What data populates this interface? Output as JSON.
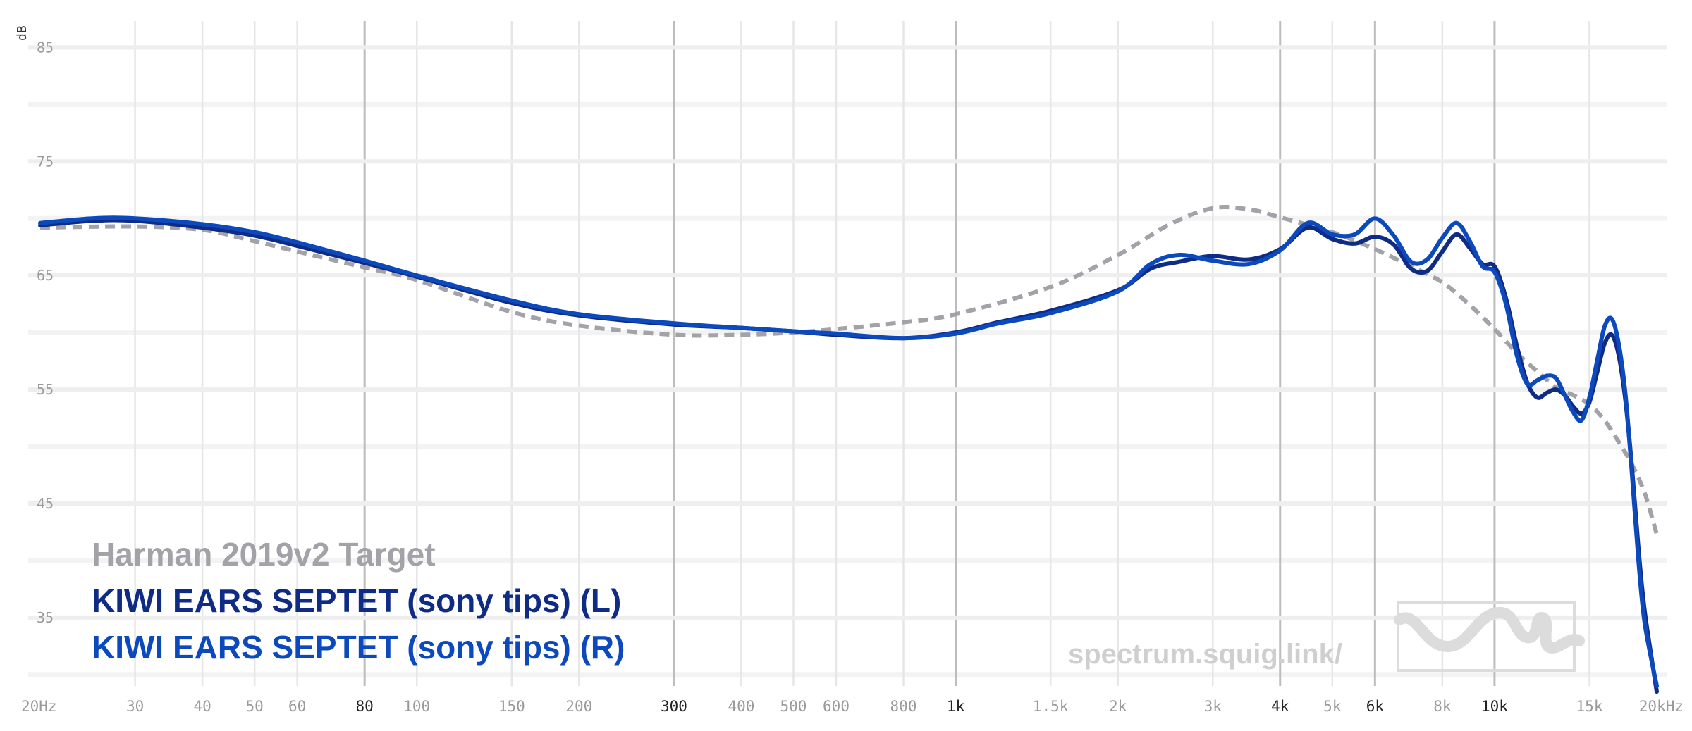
{
  "chart_data": {
    "type": "line",
    "xscale": "log",
    "xlim": [
      20,
      20000
    ],
    "ylim": [
      29,
      87
    ],
    "ylabel": "dB",
    "y_ticks": [
      {
        "value": 85,
        "label": "85"
      },
      {
        "value": 75,
        "label": "75"
      },
      {
        "value": 65,
        "label": "65"
      },
      {
        "value": 55,
        "label": "55"
      },
      {
        "value": 45,
        "label": "45"
      },
      {
        "value": 35,
        "label": "35"
      }
    ],
    "y_minor_gridlines": [
      80,
      70,
      60,
      50,
      40,
      30
    ],
    "x_ticks": [
      {
        "value": 20,
        "label": "20Hz",
        "major": false
      },
      {
        "value": 30,
        "label": "30",
        "major": false
      },
      {
        "value": 40,
        "label": "40",
        "major": false
      },
      {
        "value": 50,
        "label": "50",
        "major": false
      },
      {
        "value": 60,
        "label": "60",
        "major": false
      },
      {
        "value": 80,
        "label": "80",
        "major": true
      },
      {
        "value": 100,
        "label": "100",
        "major": false
      },
      {
        "value": 150,
        "label": "150",
        "major": false
      },
      {
        "value": 200,
        "label": "200",
        "major": false
      },
      {
        "value": 300,
        "label": "300",
        "major": true
      },
      {
        "value": 400,
        "label": "400",
        "major": false
      },
      {
        "value": 500,
        "label": "500",
        "major": false
      },
      {
        "value": 600,
        "label": "600",
        "major": false
      },
      {
        "value": 800,
        "label": "800",
        "major": false
      },
      {
        "value": 1000,
        "label": "1k",
        "major": true
      },
      {
        "value": 1500,
        "label": "1.5k",
        "major": false
      },
      {
        "value": 2000,
        "label": "2k",
        "major": false
      },
      {
        "value": 3000,
        "label": "3k",
        "major": false
      },
      {
        "value": 4000,
        "label": "4k",
        "major": true
      },
      {
        "value": 5000,
        "label": "5k",
        "major": false
      },
      {
        "value": 6000,
        "label": "6k",
        "major": true
      },
      {
        "value": 8000,
        "label": "8k",
        "major": false
      },
      {
        "value": 10000,
        "label": "10k",
        "major": true
      },
      {
        "value": 15000,
        "label": "15k",
        "major": false
      },
      {
        "value": 20000,
        "label": "20kHz",
        "major": false
      }
    ],
    "series": [
      {
        "name": "Harman 2019v2 Target",
        "color": "#a3a2a8",
        "dashed": true,
        "x": [
          20,
          30,
          40,
          50,
          60,
          80,
          100,
          150,
          200,
          300,
          400,
          500,
          600,
          800,
          1000,
          1500,
          2000,
          2500,
          3000,
          3500,
          4000,
          5000,
          6000,
          7000,
          8000,
          9000,
          10000,
          11000,
          12000,
          13000,
          14000,
          15000,
          16000,
          17000,
          18000,
          19000,
          20000
        ],
        "values": [
          69.2,
          69.3,
          69.0,
          68.0,
          67.1,
          65.7,
          64.6,
          61.8,
          60.6,
          59.8,
          59.8,
          60.0,
          60.3,
          60.9,
          61.6,
          64.0,
          66.8,
          69.5,
          70.9,
          70.8,
          70.1,
          68.8,
          67.3,
          65.8,
          64.4,
          62.4,
          60.3,
          58.2,
          56.6,
          55.2,
          54.5,
          53.7,
          52.3,
          50.4,
          48.4,
          45.9,
          42.3
        ]
      },
      {
        "name": "KIWI EARS SEPTET (sony tips) (L)",
        "color": "#0e2b86",
        "dashed": false,
        "x": [
          20,
          25,
          30,
          40,
          50,
          60,
          80,
          100,
          150,
          200,
          300,
          400,
          500,
          600,
          800,
          1000,
          1200,
          1500,
          2000,
          2300,
          2600,
          3000,
          3500,
          4000,
          4500,
          5000,
          5500,
          6000,
          6500,
          7000,
          7500,
          8000,
          8500,
          9000,
          9500,
          10000,
          10500,
          11000,
          11500,
          12000,
          12500,
          13000,
          13500,
          14000,
          14500,
          15000,
          15500,
          16000,
          16500,
          17000,
          17500,
          18000,
          18500,
          19000,
          20000
        ],
        "values": [
          69.4,
          69.8,
          69.8,
          69.2,
          68.5,
          67.6,
          66.1,
          64.9,
          62.6,
          61.5,
          60.7,
          60.4,
          60.1,
          59.8,
          59.5,
          60.0,
          60.9,
          61.9,
          63.7,
          65.6,
          66.2,
          66.7,
          66.4,
          67.3,
          69.2,
          68.2,
          67.8,
          68.4,
          67.7,
          65.6,
          65.4,
          67.1,
          68.6,
          67.4,
          66.0,
          65.8,
          63.0,
          58.8,
          55.6,
          54.3,
          54.7,
          55.0,
          54.5,
          53.5,
          52.9,
          53.9,
          56.5,
          59.0,
          59.8,
          58.0,
          54.0,
          48.0,
          41.0,
          35.5,
          28.5
        ]
      },
      {
        "name": "KIWI EARS SEPTET (sony tips) (R)",
        "color": "#0b49bc",
        "dashed": false,
        "x": [
          20,
          25,
          30,
          40,
          50,
          60,
          80,
          100,
          150,
          200,
          300,
          400,
          500,
          600,
          800,
          1000,
          1200,
          1500,
          2000,
          2300,
          2600,
          3000,
          3500,
          4000,
          4500,
          5000,
          5500,
          6000,
          6500,
          7000,
          7500,
          8000,
          8500,
          9000,
          9500,
          10000,
          10500,
          11000,
          11500,
          12000,
          12500,
          13000,
          13500,
          14000,
          14500,
          15000,
          15500,
          16000,
          16500,
          17000,
          17500,
          18000,
          18500,
          19000,
          20000
        ],
        "values": [
          69.6,
          70.0,
          70.0,
          69.5,
          68.8,
          67.9,
          66.3,
          65.0,
          62.8,
          61.6,
          60.8,
          60.4,
          60.1,
          59.9,
          59.5,
          59.9,
          60.8,
          61.7,
          63.6,
          66.0,
          66.8,
          66.3,
          66.0,
          67.2,
          69.6,
          68.6,
          68.6,
          70.0,
          68.5,
          66.2,
          66.4,
          68.3,
          69.6,
          68.0,
          65.8,
          65.3,
          62.5,
          58.0,
          55.5,
          55.8,
          56.2,
          56.0,
          54.5,
          53.0,
          52.3,
          54.3,
          57.5,
          60.5,
          61.2,
          59.0,
          54.5,
          47.5,
          40.0,
          34.5,
          29.0
        ]
      }
    ]
  },
  "watermark": {
    "text": "spectrum.squig.link/",
    "logo": "squiggle-logo"
  }
}
